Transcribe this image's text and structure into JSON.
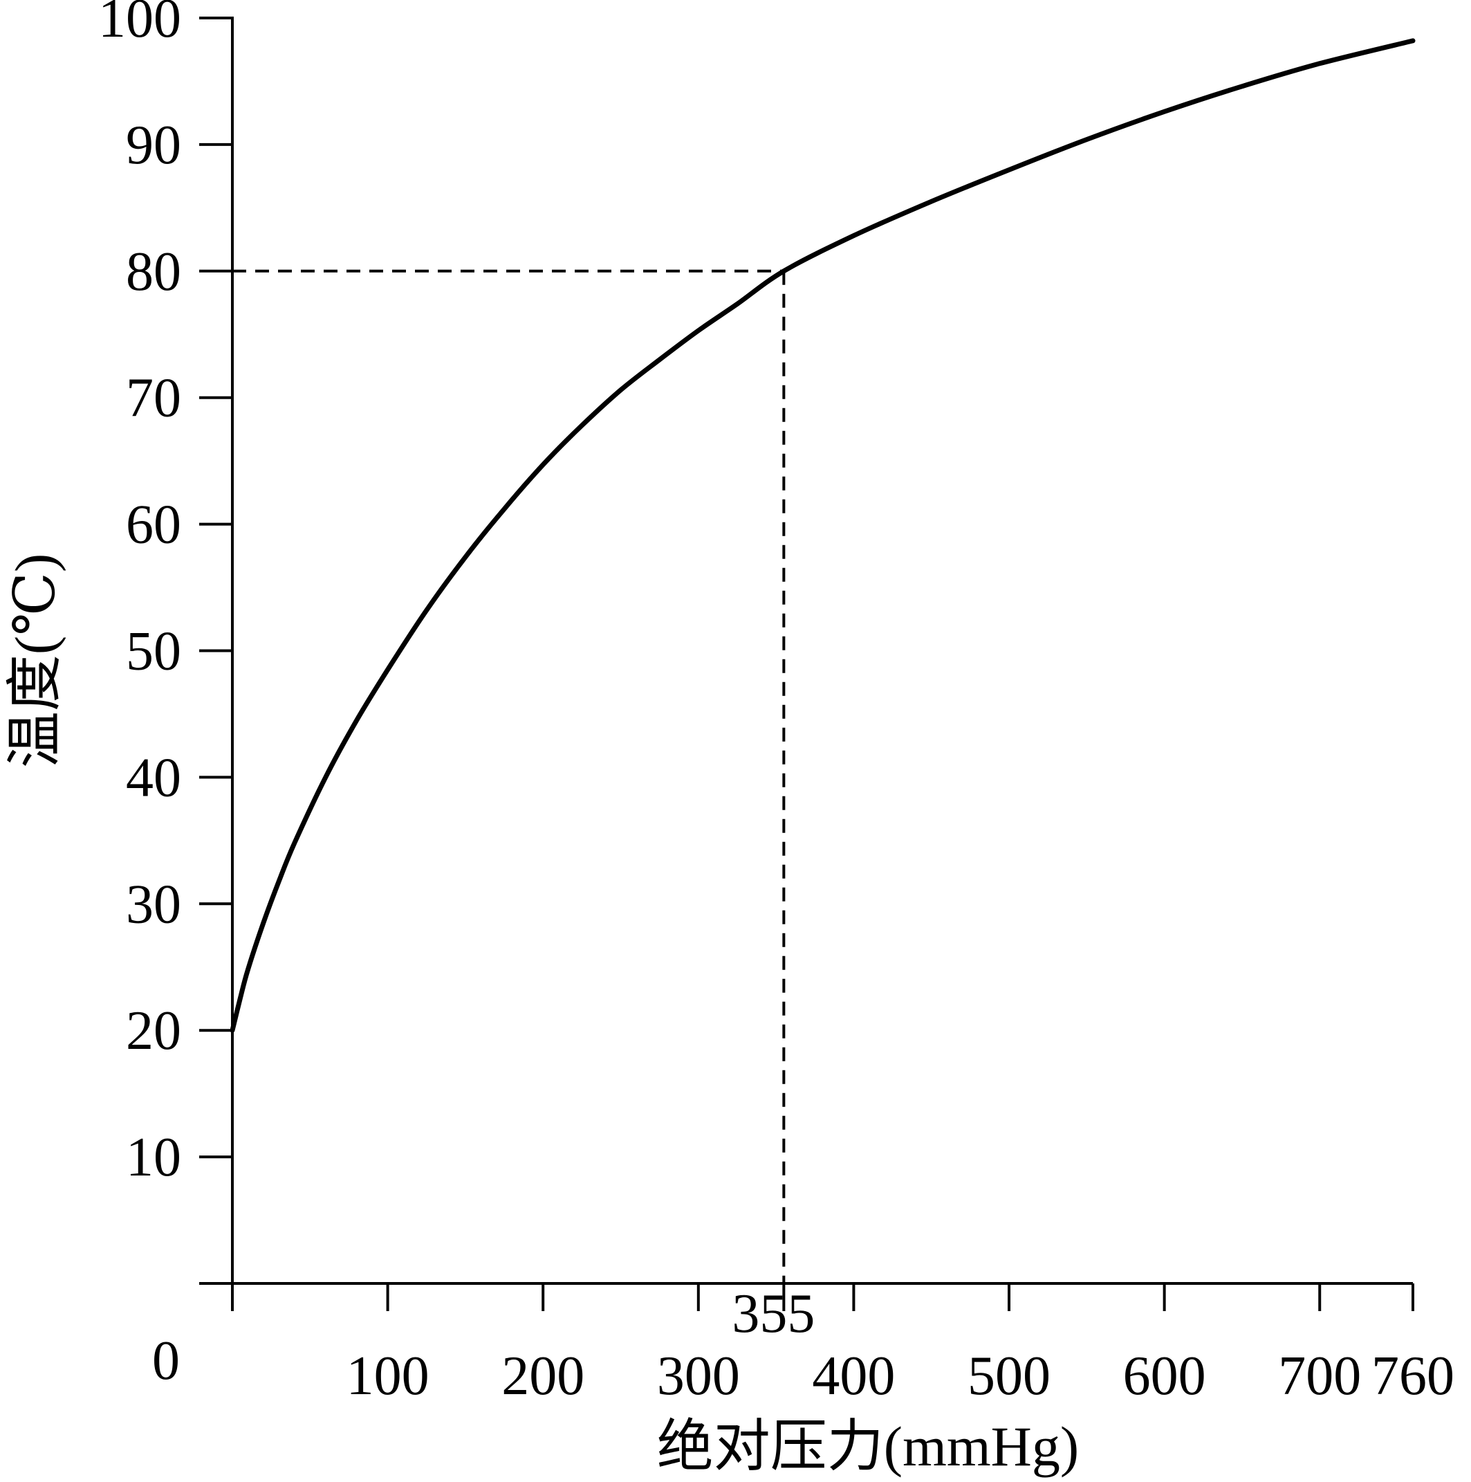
{
  "chart_data": {
    "type": "line",
    "title": "",
    "xlabel": "绝对压力(mmHg)",
    "ylabel": "温度(℃)",
    "origin_label": "0",
    "xlim": [
      0,
      760
    ],
    "ylim": [
      0,
      100
    ],
    "x_ticks": [
      100,
      200,
      300,
      400,
      500,
      600,
      700,
      760
    ],
    "x_tick_labels": [
      "100",
      "200",
      "300",
      "400",
      "500",
      "600",
      "700",
      "760"
    ],
    "y_ticks": [
      10,
      20,
      30,
      40,
      50,
      60,
      70,
      80,
      90,
      100
    ],
    "y_tick_labels": [
      "10",
      "20",
      "30",
      "40",
      "50",
      "60",
      "70",
      "80",
      "90",
      "100"
    ],
    "grid": false,
    "series": [
      {
        "x": [
          0,
          5,
          10,
          20,
          30,
          40,
          60,
          80,
          100,
          125,
          150,
          175,
          200,
          225,
          250,
          275,
          300,
          325,
          355,
          400,
          450,
          500,
          550,
          600,
          650,
          700,
          760
        ],
        "y": [
          20,
          22.5,
          24.8,
          28.5,
          31.8,
          34.8,
          40,
          44.5,
          48.5,
          53.2,
          57.4,
          61.2,
          64.7,
          67.8,
          70.6,
          73.0,
          75.3,
          77.4,
          80,
          82.8,
          85.5,
          88.0,
          90.4,
          92.6,
          94.6,
          96.4,
          98.2
        ],
        "color": "#000000"
      }
    ],
    "reference": {
      "x": 355,
      "y": 80,
      "x_label": "355",
      "style": "dashed"
    }
  }
}
